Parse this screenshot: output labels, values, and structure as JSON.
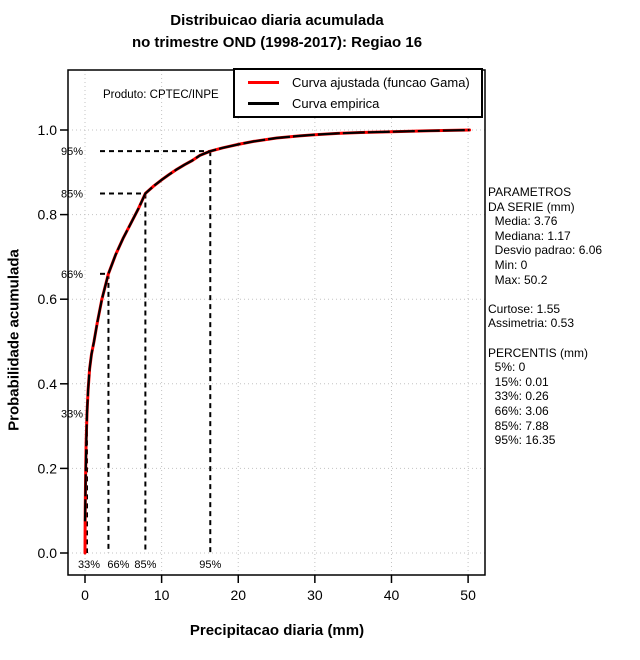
{
  "title": {
    "line1": "Distribuicao diaria acumulada",
    "line2": "no trimestre OND (1998-2017): Regiao 16"
  },
  "axes": {
    "x_label": "Precipitacao diaria (mm)",
    "y_label": "Probabilidade acumulada",
    "x_ticks": [
      "0",
      "10",
      "20",
      "30",
      "40",
      "50"
    ],
    "x_tick_values": [
      0,
      10,
      20,
      30,
      40,
      50
    ],
    "y_ticks": [
      "0.0",
      "0.2",
      "0.4",
      "0.6",
      "0.8",
      "1.0"
    ],
    "y_tick_values": [
      0,
      0.2,
      0.4,
      0.6,
      0.8,
      1.0
    ]
  },
  "legend": {
    "items": [
      {
        "label": "Curva ajustada (funcao Gama)",
        "color": "#ff0000"
      },
      {
        "label": "Curva empirica",
        "color": "#000000"
      }
    ]
  },
  "watermark": "Produto: CPTEC/INPE",
  "stats_panel": {
    "lines": [
      "PARAMETROS",
      "DA SERIE (mm)",
      "  Media: 3.76",
      "  Mediana: 1.17",
      "  Desvio padrao: 6.06",
      "  Min: 0",
      "  Max: 50.2",
      "",
      "Curtose: 1.55",
      "Assimetria: 0.53",
      "",
      "PERCENTIS (mm)",
      "  5%: 0",
      "  15%: 0.01",
      "  33%: 0.26",
      "  66%: 3.06",
      "  85%: 7.88",
      "  95%: 16.35"
    ]
  },
  "chart_data": {
    "type": "line",
    "title": "Distribuicao diaria acumulada no trimestre OND (1998-2017): Regiao 16",
    "xlabel": "Precipitacao diaria (mm)",
    "ylabel": "Probabilidade acumulada",
    "xlim": [
      -2.2,
      52.2
    ],
    "ylim": [
      -0.05,
      1.14
    ],
    "grid": true,
    "grid_color": "#c3c3c3",
    "legend_position": "top-right",
    "series": [
      {
        "name": "Curva ajustada (funcao Gama)",
        "color": "#ff0000",
        "x": [
          0,
          0.03,
          0.08,
          0.15,
          0.26,
          0.4,
          0.6,
          0.85,
          1.17,
          1.6,
          2.2,
          3.06,
          4,
          5,
          6,
          7,
          7.88,
          9,
          10,
          11,
          12,
          13,
          14,
          15,
          16.35,
          18,
          20,
          22,
          25,
          28,
          30,
          33,
          36,
          40,
          45,
          50.2
        ],
        "y": [
          0,
          0.1,
          0.18,
          0.26,
          0.33,
          0.385,
          0.435,
          0.47,
          0.5,
          0.545,
          0.6,
          0.66,
          0.705,
          0.745,
          0.78,
          0.815,
          0.85,
          0.868,
          0.882,
          0.895,
          0.907,
          0.918,
          0.928,
          0.94,
          0.95,
          0.958,
          0.966,
          0.973,
          0.981,
          0.986,
          0.989,
          0.992,
          0.994,
          0.996,
          0.998,
          1.0
        ]
      },
      {
        "name": "Curva empirica",
        "color": "#000000",
        "x": [
          0,
          0.05,
          0.1,
          0.18,
          0.26,
          0.4,
          0.6,
          0.85,
          1.17,
          1.6,
          2.2,
          3.06,
          4,
          5,
          6,
          7,
          7.88,
          9,
          10,
          11,
          12,
          13,
          14,
          15,
          16.35,
          18,
          20,
          22,
          25,
          28,
          30,
          33,
          36,
          40,
          45,
          50.2
        ],
        "y": [
          0.075,
          0.13,
          0.2,
          0.27,
          0.33,
          0.385,
          0.435,
          0.47,
          0.5,
          0.545,
          0.6,
          0.66,
          0.705,
          0.745,
          0.78,
          0.815,
          0.85,
          0.868,
          0.882,
          0.895,
          0.907,
          0.918,
          0.928,
          0.94,
          0.95,
          0.958,
          0.966,
          0.973,
          0.981,
          0.986,
          0.989,
          0.992,
          0.994,
          0.996,
          0.998,
          1.0
        ]
      }
    ],
    "annotations": {
      "watermark": "Produto: CPTEC/INPE",
      "percentile_guides": [
        {
          "label": "33%",
          "x": 0.26,
          "p": 0.33
        },
        {
          "label": "66%",
          "x": 3.06,
          "p": 0.66
        },
        {
          "label": "85%",
          "x": 7.88,
          "p": 0.85
        },
        {
          "label": "95%",
          "x": 16.35,
          "p": 0.95
        }
      ]
    },
    "stats": {
      "media": 3.76,
      "mediana": 1.17,
      "desvio_padrao": 6.06,
      "min": 0,
      "max": 50.2,
      "curtose": 1.55,
      "assimetria": 0.53,
      "percentis": {
        "5%": 0,
        "15%": 0.01,
        "33%": 0.26,
        "66%": 3.06,
        "85%": 7.88,
        "95%": 16.35
      }
    }
  }
}
